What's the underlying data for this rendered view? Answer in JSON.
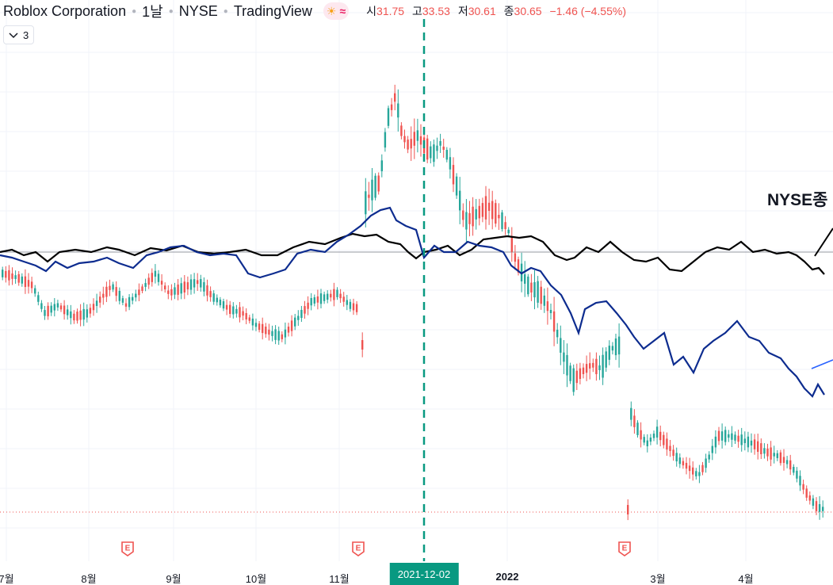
{
  "header": {
    "symbol": "Roblox Corporation",
    "interval": "1날",
    "exchange": "NYSE",
    "source": "TradingView",
    "weather_icon": "sun-cloud-icon",
    "wave_icon": "wave-icon"
  },
  "ohlc": {
    "open_label": "시",
    "open": "31.75",
    "high_label": "고",
    "high": "33.53",
    "low_label": "저",
    "low": "30.61",
    "close_label": "종",
    "close": "30.65",
    "change": "−1.46 (−4.55%)"
  },
  "collapse_button": {
    "count": "3",
    "icon": "chevron-down-icon"
  },
  "compare_label": "NYSE종",
  "crosshair_date": "2021-12-02",
  "x_axis": {
    "ticks": [
      "7월",
      "8월",
      "9월",
      "10월",
      "11월",
      "2022",
      "3월",
      "4월"
    ]
  },
  "earnings_marker": {
    "label": "E",
    "icon": "earnings-icon"
  },
  "colors": {
    "up": "#26a69a",
    "down": "#ef5350",
    "compare_black": "#000000",
    "compare_blue": "#0d2c8f",
    "crosshair": "#089981",
    "last_price_line": "#ef5350"
  }
}
